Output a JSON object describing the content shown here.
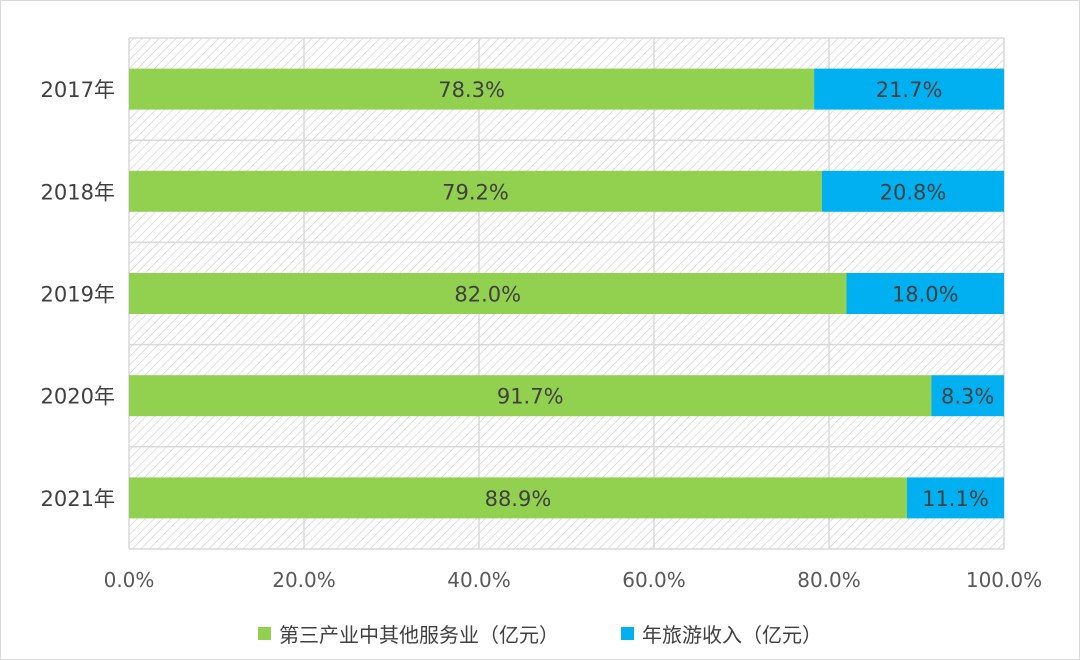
{
  "chart_data": {
    "type": "bar",
    "orientation": "horizontal",
    "stacked": true,
    "categories": [
      "2017年",
      "2018年",
      "2019年",
      "2020年",
      "2021年"
    ],
    "series": [
      {
        "name": "第三产业中其他服务业（亿元）",
        "values": [
          78.3,
          79.2,
          82.0,
          91.7,
          88.9
        ],
        "labels": [
          "78.3%",
          "79.2%",
          "82.0%",
          "91.7%",
          "88.9%"
        ],
        "color": "#92d050"
      },
      {
        "name": "年旅游收入（亿元）",
        "values": [
          21.7,
          20.8,
          18.0,
          8.3,
          11.1
        ],
        "labels": [
          "21.7%",
          "20.8%",
          "18.0%",
          "8.3%",
          "11.1%"
        ],
        "color": "#00b0f0"
      }
    ],
    "xlim": [
      0,
      100
    ],
    "xticks": [
      "0.0%",
      "20.0%",
      "40.0%",
      "60.0%",
      "80.0%",
      "100.0%"
    ],
    "grid": true,
    "legend_position": "bottom",
    "title": "",
    "xlabel": "",
    "ylabel": ""
  }
}
